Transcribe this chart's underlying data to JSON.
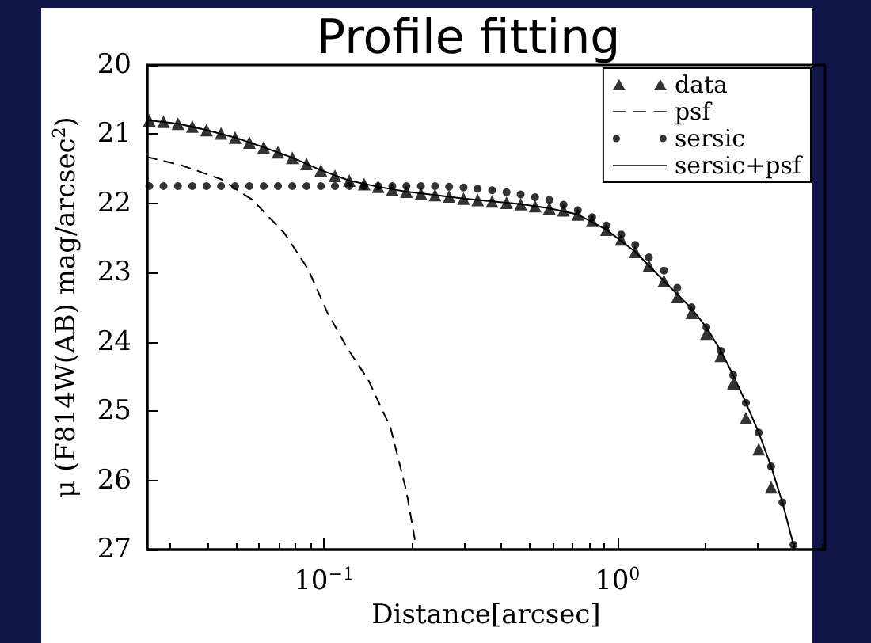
{
  "chart_data": {
    "type": "line",
    "title": "Profile fitting",
    "xlabel": "Distance[arcsec]",
    "ylabel": "μ (F814W(AB) mag/arcsec$^{2}$)",
    "log": "x",
    "xlim": [
      0.025,
      5.1
    ],
    "xticks": [
      {
        "value": 0.1,
        "label": "10$^{−1}$"
      },
      {
        "value": 1,
        "label": "10$^{0}$"
      }
    ],
    "ylim": [
      27,
      20
    ],
    "yticks": [
      20,
      21,
      22,
      23,
      24,
      25,
      26,
      27
    ],
    "grid": false,
    "legend": "top right",
    "series": [
      {
        "name": "data",
        "type": "scatter",
        "marker": "triangle",
        "color": "#000000",
        "x": [
          0.0254,
          0.0284,
          0.0318,
          0.0356,
          0.0398,
          0.0446,
          0.0498,
          0.0557,
          0.0623,
          0.0697,
          0.078,
          0.0872,
          0.0976,
          0.109,
          0.122,
          0.137,
          0.153,
          0.171,
          0.191,
          0.214,
          0.239,
          0.267,
          0.299,
          0.334,
          0.374,
          0.419,
          0.468,
          0.524,
          0.586,
          0.655,
          0.733,
          0.82,
          0.917,
          1.03,
          1.15,
          1.28,
          1.44,
          1.6,
          1.79,
          2.01,
          2.25,
          2.48,
          2.74,
          3.03,
          3.34
        ],
        "values": [
          20.8,
          20.82,
          20.85,
          20.89,
          20.94,
          20.99,
          21.05,
          21.12,
          21.19,
          21.26,
          21.34,
          21.43,
          21.52,
          21.6,
          21.67,
          21.72,
          21.76,
          21.8,
          21.83,
          21.86,
          21.88,
          21.9,
          21.93,
          21.95,
          21.97,
          21.99,
          22.01,
          22.04,
          22.07,
          22.1,
          22.16,
          22.25,
          22.38,
          22.52,
          22.7,
          22.9,
          23.12,
          23.35,
          23.58,
          23.88,
          24.2,
          24.6,
          25.1,
          25.55,
          26.1
        ]
      },
      {
        "name": "psf",
        "marker": "none",
        "line_style": "dashed",
        "color": "#000000",
        "x": [
          0.025,
          0.0327,
          0.0446,
          0.0571,
          0.0733,
          0.0883,
          0.1025,
          0.1205,
          0.1416,
          0.1686,
          0.191,
          0.206
        ],
        "values": [
          21.33,
          21.45,
          21.65,
          21.95,
          22.43,
          22.95,
          23.57,
          24.1,
          24.55,
          25.24,
          26.16,
          26.96
        ]
      },
      {
        "name": "sersic",
        "type": "scatter",
        "marker": "circle",
        "color": "#000000",
        "x": [
          0.0254,
          0.0284,
          0.0318,
          0.0356,
          0.0398,
          0.0446,
          0.0498,
          0.0557,
          0.0623,
          0.0697,
          0.078,
          0.0872,
          0.0976,
          0.109,
          0.122,
          0.137,
          0.153,
          0.171,
          0.191,
          0.214,
          0.239,
          0.267,
          0.299,
          0.334,
          0.374,
          0.419,
          0.468,
          0.524,
          0.586,
          0.655,
          0.733,
          0.82,
          0.917,
          1.03,
          1.15,
          1.28,
          1.44,
          1.6,
          1.79,
          2.01,
          2.25,
          2.48,
          2.74,
          3.03,
          3.34,
          3.65,
          3.98
        ],
        "values": [
          21.75,
          21.75,
          21.75,
          21.75,
          21.75,
          21.75,
          21.75,
          21.75,
          21.75,
          21.75,
          21.75,
          21.75,
          21.75,
          21.75,
          21.75,
          21.75,
          21.75,
          21.75,
          21.75,
          21.75,
          21.75,
          21.76,
          21.77,
          21.79,
          21.81,
          21.84,
          21.87,
          21.91,
          21.95,
          22.02,
          22.1,
          22.2,
          22.32,
          22.45,
          22.6,
          22.78,
          22.97,
          23.22,
          23.5,
          23.79,
          24.13,
          24.48,
          24.88,
          25.31,
          25.8,
          26.32,
          26.93
        ]
      },
      {
        "name": "sersic+psf",
        "marker": "none",
        "line_style": "solid",
        "color": "#000000",
        "x": [
          0.0254,
          0.0318,
          0.0398,
          0.0498,
          0.0623,
          0.078,
          0.0976,
          0.122,
          0.153,
          0.191,
          0.239,
          0.299,
          0.374,
          0.468,
          0.586,
          0.733,
          0.917,
          1.15,
          1.44,
          1.79,
          2.01,
          2.25,
          2.48,
          2.74,
          3.03,
          3.34,
          3.65,
          3.98
        ],
        "values": [
          20.8,
          20.85,
          20.94,
          21.05,
          21.19,
          21.34,
          21.52,
          21.67,
          21.76,
          21.83,
          21.88,
          21.93,
          21.97,
          22.01,
          22.07,
          22.16,
          22.38,
          22.7,
          23.12,
          23.52,
          23.79,
          24.13,
          24.48,
          24.88,
          25.31,
          25.8,
          26.32,
          26.93
        ]
      }
    ]
  }
}
